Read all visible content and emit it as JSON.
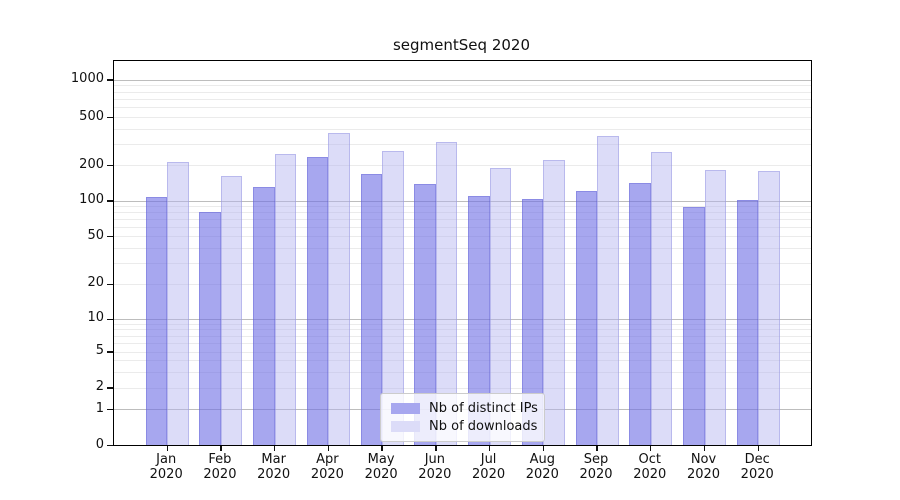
{
  "chart_data": {
    "type": "bar",
    "title": "segmentSeq 2020",
    "year": "2020",
    "months": [
      "Jan",
      "Feb",
      "Mar",
      "Apr",
      "May",
      "Jun",
      "Jul",
      "Aug",
      "Sep",
      "Oct",
      "Nov",
      "Dec"
    ],
    "categories": [
      "Jan 2020",
      "Feb 2020",
      "Mar 2020",
      "Apr 2020",
      "May 2020",
      "Jun 2020",
      "Jul 2020",
      "Aug 2020",
      "Sep 2020",
      "Oct 2020",
      "Nov 2020",
      "Dec 2020"
    ],
    "series": [
      {
        "name": "Nb of distinct IPs",
        "color": "#a7a7ef",
        "fill": "rgba(108,108,228,0.6)",
        "edge": "rgba(90,90,210,0.35)",
        "values": [
          108,
          80,
          131,
          234,
          168,
          140,
          110,
          105,
          121,
          142,
          89,
          101
        ]
      },
      {
        "name": "Nb of downloads",
        "color": "#dcdcf8",
        "fill": "rgba(177,177,239,0.45)",
        "edge": "rgba(150,150,225,0.5)",
        "values": [
          214,
          162,
          250,
          372,
          263,
          315,
          192,
          221,
          354,
          258,
          183,
          179
        ]
      }
    ],
    "y_axis": {
      "scale": "log-like with 0 baseline",
      "ticks": [
        1000,
        500,
        200,
        100,
        50,
        20,
        10,
        5,
        2,
        1,
        0
      ],
      "ylim": [
        0,
        1400
      ]
    },
    "grid": true,
    "legend_position": "lower-center inside plot",
    "colors": {
      "major_grid": "#bdbdbd",
      "minor_grid": "#ebebeb",
      "axis": "#000000",
      "text": "#111111"
    }
  }
}
